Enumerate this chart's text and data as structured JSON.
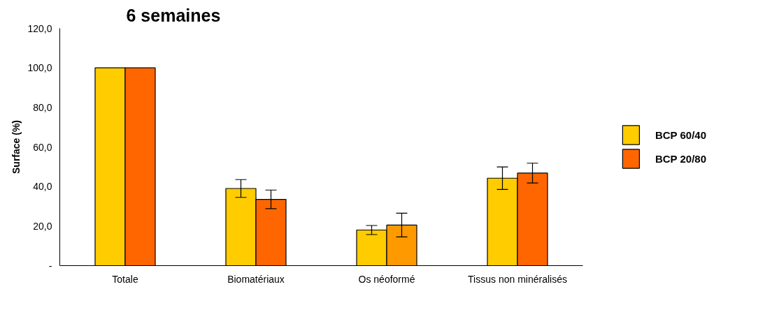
{
  "chart_data": {
    "type": "bar",
    "title": "6 semaines",
    "ylabel": "Surface (%)",
    "categories": [
      "Totale",
      "Biomatériaux",
      "Os néoformé",
      "Tissus non minéralisés"
    ],
    "series": [
      {
        "name": "BCP 60/40",
        "color": "#ffcc00",
        "values": [
          100,
          39.0,
          18.0,
          44.2
        ],
        "errors": [
          null,
          4.5,
          2.3,
          5.7
        ]
      },
      {
        "name": "BCP 20/80",
        "color": "#ff6600",
        "colors": [
          "#ff6600",
          "#ff6600",
          "#ff9900",
          "#ff6600"
        ],
        "values": [
          100,
          33.5,
          20.5,
          46.8
        ],
        "errors": [
          null,
          4.7,
          6.0,
          5.0
        ]
      }
    ],
    "ylim": [
      0,
      120
    ],
    "yticks": [
      {
        "value": 0,
        "label": "-"
      },
      {
        "value": 20,
        "label": "20,0"
      },
      {
        "value": 40,
        "label": "40,0"
      },
      {
        "value": 60,
        "label": "60,0"
      },
      {
        "value": 80,
        "label": "80,0"
      },
      {
        "value": 100,
        "label": "100,0"
      },
      {
        "value": 120,
        "label": "120,0"
      }
    ],
    "grid": false,
    "legend": "right"
  }
}
